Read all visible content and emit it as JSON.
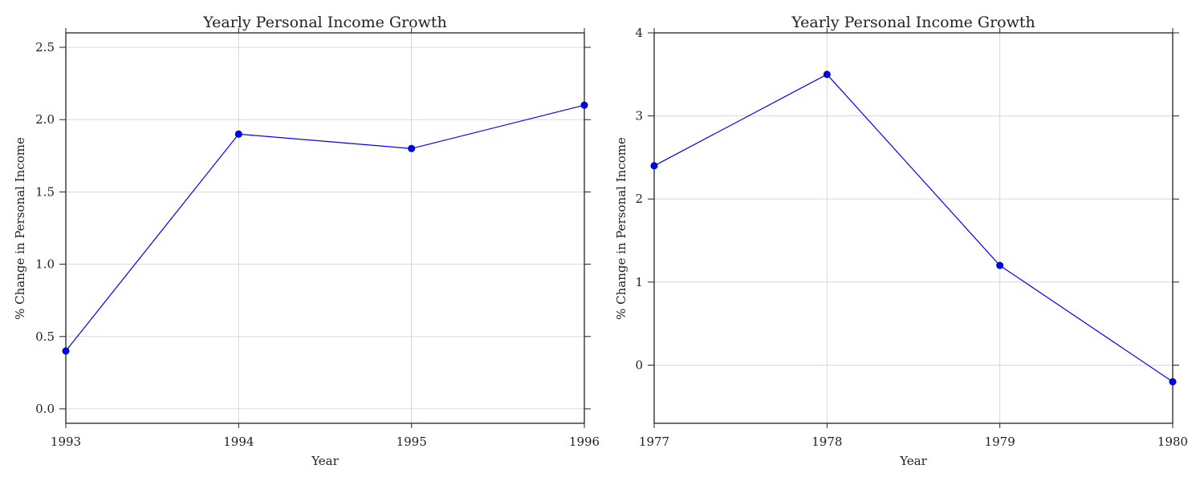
{
  "chart_data": [
    {
      "type": "line",
      "title": "Yearly Personal Income Growth",
      "xlabel": "Year",
      "ylabel": "% Change in Personal Income",
      "x": [
        1993,
        1994,
        1995,
        1996
      ],
      "series": [
        {
          "values": [
            0.4,
            1.9,
            1.8,
            2.1
          ],
          "color": "#0000ff",
          "marker": "circle"
        }
      ],
      "xlim": [
        1993,
        1996
      ],
      "ylim": [
        -0.1,
        2.6
      ],
      "xticks": [
        1993,
        1994,
        1995,
        1996
      ],
      "xtick_labels": [
        "1993",
        "1994",
        "1995",
        "1996"
      ],
      "yticks": [
        0.0,
        0.5,
        1.0,
        1.5,
        2.0,
        2.5
      ],
      "ytick_labels": [
        "0.0",
        "0.5",
        "1.0",
        "1.5",
        "2.0",
        "2.5"
      ],
      "grid": true,
      "legend": "none"
    },
    {
      "type": "line",
      "title": "Yearly Personal Income Growth",
      "xlabel": "Year",
      "ylabel": "% Change in Personal Income",
      "x": [
        1977,
        1978,
        1979,
        1980
      ],
      "series": [
        {
          "values": [
            2.4,
            3.5,
            1.2,
            -0.2
          ],
          "color": "#0000ff",
          "marker": "circle"
        }
      ],
      "xlim": [
        1977,
        1980
      ],
      "ylim": [
        -0.7,
        4.0
      ],
      "xticks": [
        1977,
        1978,
        1979,
        1980
      ],
      "xtick_labels": [
        "1977",
        "1978",
        "1979",
        "1980"
      ],
      "yticks": [
        0,
        1,
        2,
        3,
        4
      ],
      "ytick_labels": [
        "0",
        "1",
        "2",
        "3",
        "4"
      ],
      "grid": true,
      "legend": "none"
    }
  ]
}
